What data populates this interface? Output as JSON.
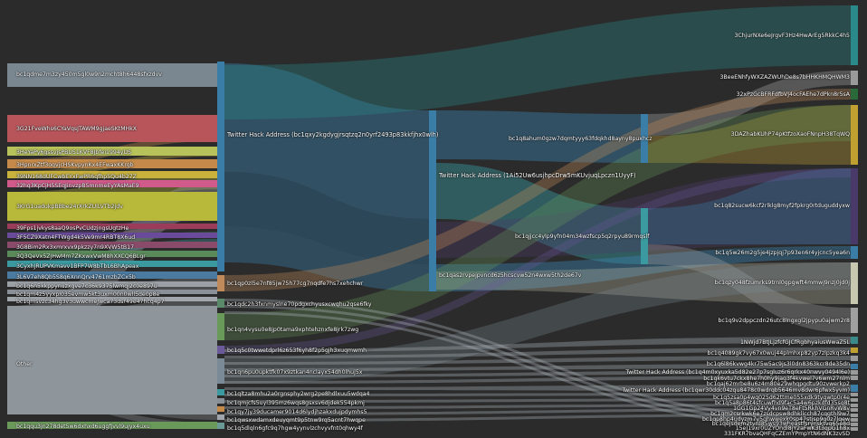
{
  "colors": {
    "background": "#2b2b2b"
  },
  "sankey": {
    "left_nodes": [
      {
        "label": "bc1qdme7m3zy450m5gl0w9n2mcht8h6448sfxzdvv",
        "color": "#7a8790"
      },
      {
        "label": "3G21FveWhs6CYaVqsJTAWM9gjaeSKtMHkX",
        "color": "#b8555b"
      },
      {
        "label": "3HeYaPy6gssvjsPBUS1KVF8Jbfei1994yUS",
        "color": "#b7c25a"
      },
      {
        "label": "3HpnrxZtf3oqvjcHSKvpynKx4EFwaxKKrgb",
        "color": "#c58a4a"
      },
      {
        "label": "39NN168dUFCwbEYxFwPR6qfhp5Qu4b27Z",
        "color": "#c8b23c"
      },
      {
        "label": "32hq3KpCjH5SEqJinvzpB5mnmeEyYAsMaE9",
        "color": "#d05a8a"
      },
      {
        "label": "3KrG1uadukpBBbe24rXrkZUiLVTb2jdv",
        "color": "#b8b83a"
      },
      {
        "label": "39Fps1jvkys8aaQ9osPvCUdzjngsUgtzHe",
        "color": "#9a3c5a"
      },
      {
        "label": "3F5CZ9Xatn4FTWgd4k5Ve9mr4RBT8X6ud",
        "color": "#6a4a9a"
      },
      {
        "label": "3G8Bim2Rx3xmrxvx9pkzzy7n9XVW5tB17",
        "color": "#8a4a6a"
      },
      {
        "label": "3Q3QeVx5ZJHwMm7ZKxwxVwM8hXXCQ6BLgr",
        "color": "#5a8a5a"
      },
      {
        "label": "3CyxhJRUPVKmavv1BFP7W8bTbL6BhApeax",
        "color": "#3a9aa0"
      },
      {
        "label": "3L6V7eh8Qb5S8q6XnnQrv4761mzbZCx5b",
        "color": "#4a7aa0"
      },
      {
        "label": "bc1q6n5xkppynuzxgve7c36k9375lwmqj2c0e897u",
        "color": "#9aa0a6"
      },
      {
        "label": "bc1qm4z5yyxpl035evmw5kt3uxm00n0wll5de0p8e",
        "color": "#8a9098"
      },
      {
        "label": "bc1qmsvzc34hg3v3uwwcmeJwca73dsr49e47hcq4p7",
        "color": "#a0a6ac"
      },
      {
        "label": "Other",
        "color": "#8e969c"
      },
      {
        "label": "bc1qqu3jn278det5w6dxhxd6uggfjvvl9ujyx4uxu",
        "color": "#6a9a5a"
      }
    ],
    "middle_nodes": [
      {
        "label": "Twitter Hack Address (bc1qxy2kgdygjrsqtzq2n0yrf2493p83kkfjhx0wlh)",
        "color": "#3a7ea8"
      },
      {
        "label": "bc1qp0zl5e7nf85jw75h77cg7nqdfe7hs7xehchwr",
        "color": "#c08a5a"
      },
      {
        "label": "bc1qdc2h3fxnmyslne70pdgxchyusxcwqhu2qse6fky",
        "color": "#5a8a6a"
      },
      {
        "label": "bc1qn4vysu0e8jp0tama9xphtehznxfe8jrk7zwg",
        "color": "#6a9a5a"
      },
      {
        "label": "bc1q5c0twwetdprl6z653f6yh8f2p5gjh3xuqmwmh",
        "color": "#6a5a9a"
      },
      {
        "label": "bc1qn6pu0upktfk07x9ztkan4nclayx54dh0lhuj5x",
        "color": "#7a8a96"
      },
      {
        "label": "bc1qltza8mhu2a0rgnsphy2wrg2pe8hdlxuu5wdqa4",
        "color": "#3a9aa0"
      },
      {
        "label": "bc1qmjcfs5uyl395mz6wqs8gsxsv6djdek554pkmj",
        "color": "#8a9098"
      },
      {
        "label": "bc1qy7jy39ducamer9014d6lydjhzakxdujpdymhs5",
        "color": "#c58a4a"
      },
      {
        "label": "bc1qwsxwdamxdeuyqmt9p5tnw9rq5acnt7hwqpe",
        "color": "#a0a6ac"
      },
      {
        "label": "bc1q5dlqln6gfc9q7hgw4yynvlzchvyvfnt0qhwy4f",
        "color": "#6a9a96"
      },
      {
        "label": "Twitter Hack Address (1Ai52Uw6usjhpcDrw5mKUvjuqLpczn1UyyF)",
        "color": "#3a7ea8"
      },
      {
        "label": "bc1q8ahum0gzw7dqmtyyy63fdqkhd8ayny8puxhcz",
        "color": "#3a7ea8"
      },
      {
        "label": "bc1qjjcc4ylp9yfn04m34wzfscp5q2rpyu89rmqslf",
        "color": "#3a9aa0"
      },
      {
        "label": "bc1qas2rvpejpvncd6z5hcscvw52n4wxw5th2de67v",
        "color": "#3a7ea8"
      }
    ],
    "right_nodes": [
      {
        "label": "3ChjurNXe6eJrgvF3Hz4HwArEg5RkkC4h5",
        "color": "#2a8a8a"
      },
      {
        "label": "3BeeENhfyWXZAZWUhDe8s7bHHKHMQHWM3",
        "color": "#9a9a9a"
      },
      {
        "label": "32xPzGcBFRFdfbVJ4ocFAEhe7dPkn8r5sA",
        "color": "#2a6a3a"
      },
      {
        "label": "3DAZhabKUhP74pKtfzoXaoFNnpH38TqWQ",
        "color": "#c0a030"
      },
      {
        "label": "bc1q82sucw6kcf2rlklg8myf2fpkrg0rtduguddyxw",
        "color": "#4a3a6a"
      },
      {
        "label": "bc1q5w26m2g5je4jzpjqj7p93en6r4yjcnc5yea6n",
        "color": "#3a7ea8"
      },
      {
        "label": "bc1qzy048fzumrks9trnl0gpgwft4mmwj9nzj0jd0j",
        "color": "#c8c8b0"
      },
      {
        "label": "bc1q9v2dppczdn26utc8lngxgl2jpypu0ajwm2r8",
        "color": "#a0a0a0"
      },
      {
        "label": "1NWjd7BtJLjzfcfGJCfRgbhyaiusWwaZ5L",
        "color": "#3a8a8a"
      },
      {
        "label": "bc1q4089gk7vy67x0wuj44plmhxp82yp7zlpzkq3k4",
        "color": "#c0a030"
      },
      {
        "label": "bc1q6l86kvwg4kr75w5ac9js3l0dn8363kcr8de35dn",
        "color": "#9a9a9a"
      },
      {
        "label": "Twitter Hack Address (bc1q4m0xyuxka5d82e27p7sgluz6r6qrkx40nwvy0494l6e)",
        "color": "#3a7ea8"
      },
      {
        "label": "bc1qk6vtu7ckx8he7h0hy9jag3f4kvwel7v6wm27nlm",
        "color": "#9a9a9a"
      },
      {
        "label": "bc1qaj62mrbe8u6z4m80e29whqpgdtu90zvwerkp2",
        "color": "#9a9a9a"
      },
      {
        "label": "Twitter Hack Address (bc1qwr30ddc04zqu8478c0wdrqb5646mv8dwr6pfwx5yvm)",
        "color": "#3a7ea8"
      },
      {
        "label": "bc1q5zsa0p4wq025d62ttme055xdk9tyqwtp0r4e",
        "color": "#9a9a9a"
      },
      {
        "label": "bc1q5a8p86t4sfcuwfhd9fac5a4w6pzkdfd35sq8t",
        "color": "#9a9a9a"
      },
      {
        "label": "1GG1Gp24Vy4vn9eT8eFt5RkhVGnRvW8v",
        "color": "#9a9a9a"
      },
      {
        "label": "bc1qm2csrkwk6e7zsdcpsw8dhkllcch87cqgthl9w7",
        "color": "#9a9a9a"
      },
      {
        "label": "bc1qp8hp4udyzm7y5ghwwexk0sp47stjsp9q0z7lqew",
        "color": "#9a9a9a"
      },
      {
        "label": "bc1qejsdem2tvrd85ws93wheastfsrynsktvq65e8d",
        "color": "#9a9a9a"
      },
      {
        "label": "15eJ19xr0UZYOndi8jY2aFwK3t3qpG1h8x",
        "color": "#9a9a9a"
      },
      {
        "label": "331FKR7bvaQHFqCZEmYPmpYtN6dNK3zvSD",
        "color": "#9a9a9a"
      }
    ]
  }
}
